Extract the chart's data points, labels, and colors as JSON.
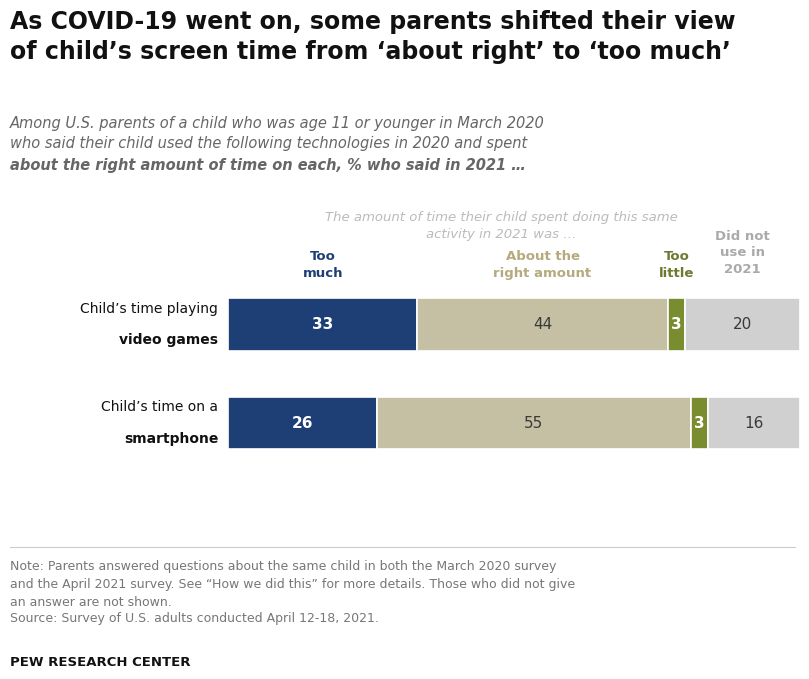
{
  "title": "As COVID-19 went on, some parents shifted their view\nof child’s screen time from ‘about right’ to ‘too much’",
  "sub_line1": "Among U.S. parents of a child who was age 11 or younger in March 2020",
  "sub_line2": "who said their child used the following technologies in 2020 and spent",
  "sub_line3_bold": "about the right amount of time",
  "sub_line3_rest": " on each, % who said in 2021 …",
  "chart_note": "The amount of time their child spent doing this same\nactivity in 2021 was …",
  "col_headers": [
    "Too\nmuch",
    "About the\nright amount",
    "Too\nlittle",
    "Did not\nuse in\n2021"
  ],
  "col_header_colors": [
    "#1e3f76",
    "#b5aa7e",
    "#6b7a2e",
    "#aaaaaa"
  ],
  "rows": [
    {
      "label_normal": "Child’s time ",
      "label_bold": "playing\nvideo games",
      "values": [
        33,
        44,
        3,
        20
      ]
    },
    {
      "label_normal": "Child’s time ",
      "label_bold": "on a\nsmartphone",
      "values": [
        26,
        55,
        3,
        16
      ]
    }
  ],
  "bar_colors": [
    "#1e3f76",
    "#c5c0a3",
    "#7a8c30",
    "#d0d0d0"
  ],
  "value_text_colors": [
    "#ffffff",
    "#3a3a3a",
    "#ffffff",
    "#3a3a3a"
  ],
  "note_text": "Note: Parents answered questions about the same child in both the March 2020 survey\nand the April 2021 survey. See “How we did this” for more details. Those who did not give\nan answer are not shown.",
  "source_text": "Source: Survey of U.S. adults conducted April 12-18, 2021.",
  "footer_text": "PEW RESEARCH CENTER",
  "bg": "#ffffff"
}
